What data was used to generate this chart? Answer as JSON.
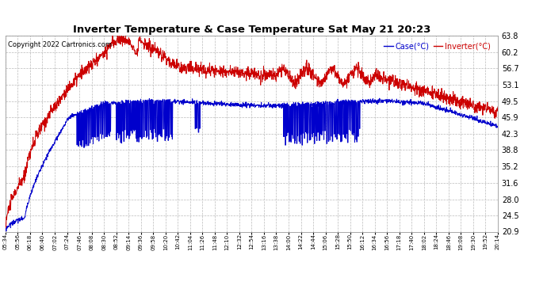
{
  "title": "Inverter Temperature & Case Temperature Sat May 21 20:23",
  "copyright": "Copyright 2022 Cartronics.com",
  "legend_case": "Case(°C)",
  "legend_inverter": "Inverter(°C)",
  "bg_color": "#ffffff",
  "plot_bg_color": "#ffffff",
  "grid_color": "#bbbbbb",
  "case_color": "#0000cc",
  "inverter_color": "#cc0000",
  "ylim_min": 20.9,
  "ylim_max": 63.8,
  "yticks": [
    20.9,
    24.5,
    28.0,
    31.6,
    35.2,
    38.8,
    42.3,
    45.9,
    49.5,
    53.1,
    56.7,
    60.2,
    63.8
  ],
  "x_labels": [
    "05:34",
    "05:56",
    "06:18",
    "06:40",
    "07:02",
    "07:24",
    "07:46",
    "08:08",
    "08:30",
    "08:52",
    "09:14",
    "09:36",
    "09:58",
    "10:20",
    "10:42",
    "11:04",
    "11:26",
    "11:48",
    "12:10",
    "12:32",
    "12:54",
    "13:16",
    "13:38",
    "14:00",
    "14:22",
    "14:44",
    "15:06",
    "15:28",
    "15:50",
    "16:12",
    "16:34",
    "16:56",
    "17:18",
    "17:40",
    "18:02",
    "18:24",
    "18:46",
    "19:08",
    "19:30",
    "19:52",
    "20:14"
  ]
}
